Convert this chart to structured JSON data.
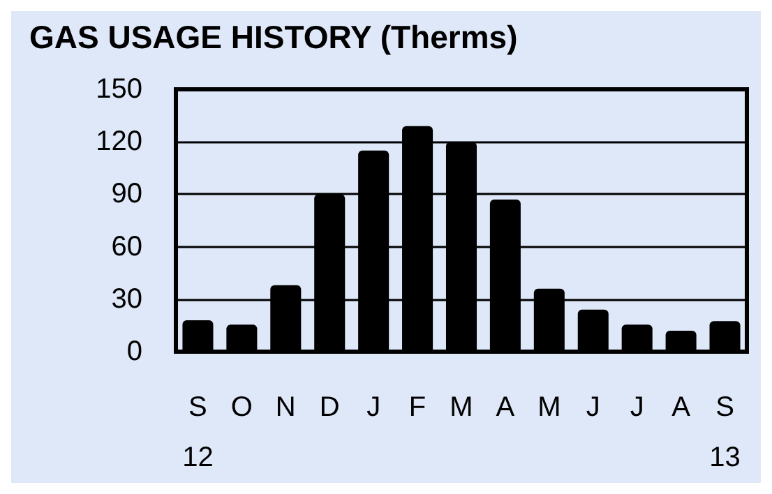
{
  "chart_data": {
    "type": "bar",
    "title": "GAS USAGE HISTORY (Therms)",
    "categories": [
      "S\n12",
      "O",
      "N",
      "D",
      "J",
      "F",
      "M",
      "A",
      "M",
      "J",
      "J",
      "A",
      "S\n13"
    ],
    "values": [
      18,
      15.5,
      38,
      90,
      115,
      129,
      120,
      87,
      36,
      24,
      15.5,
      12,
      17.5
    ],
    "color": "#000000",
    "ylim": [
      0,
      150
    ],
    "yticks": [
      0,
      30,
      60,
      90,
      120,
      150
    ],
    "grid": "y"
  }
}
